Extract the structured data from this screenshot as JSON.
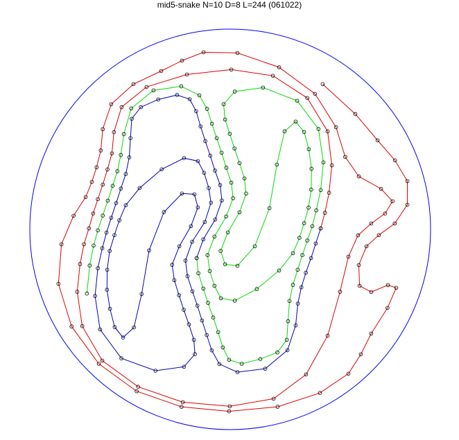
{
  "title": "mid5-snake N=10 D=8 L=244 (061022)",
  "colors": {
    "boundary": "#0000ff",
    "segment_red": "#e00000",
    "segment_green": "#00dd00",
    "segment_blue": "#0000c0",
    "marker": "#000000"
  },
  "segments": [
    "red",
    "blue",
    "green"
  ]
}
